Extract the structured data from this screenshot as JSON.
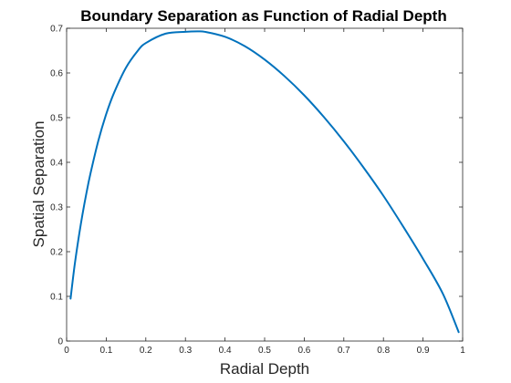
{
  "chart_data": {
    "type": "line",
    "title": "Boundary Separation as Function of Radial Depth",
    "xlabel": "Radial Depth",
    "ylabel": "Spatial Separation",
    "xlim": [
      0,
      1
    ],
    "ylim": [
      0,
      0.7
    ],
    "xticks": [
      "0",
      "0.1",
      "0.2",
      "0.3",
      "0.4",
      "0.5",
      "0.6",
      "0.7",
      "0.8",
      "0.9",
      "1"
    ],
    "yticks": [
      "0",
      "0.1",
      "0.2",
      "0.3",
      "0.4",
      "0.5",
      "0.6",
      "0.7"
    ],
    "grid": false,
    "series": [
      {
        "color": "#0072BD",
        "x": [
          0.01,
          0.02,
          0.03,
          0.04,
          0.05,
          0.06,
          0.08,
          0.1,
          0.12,
          0.15,
          0.18,
          0.2,
          0.25,
          0.3,
          0.33,
          0.35,
          0.4,
          0.45,
          0.5,
          0.55,
          0.6,
          0.65,
          0.7,
          0.75,
          0.8,
          0.85,
          0.9,
          0.95,
          0.99
        ],
        "y": [
          0.095,
          0.168,
          0.229,
          0.283,
          0.331,
          0.374,
          0.448,
          0.508,
          0.556,
          0.612,
          0.65,
          0.667,
          0.688,
          0.692,
          0.693,
          0.692,
          0.681,
          0.66,
          0.63,
          0.593,
          0.55,
          0.501,
          0.447,
          0.388,
          0.325,
          0.256,
          0.184,
          0.106,
          0.02
        ]
      }
    ]
  }
}
